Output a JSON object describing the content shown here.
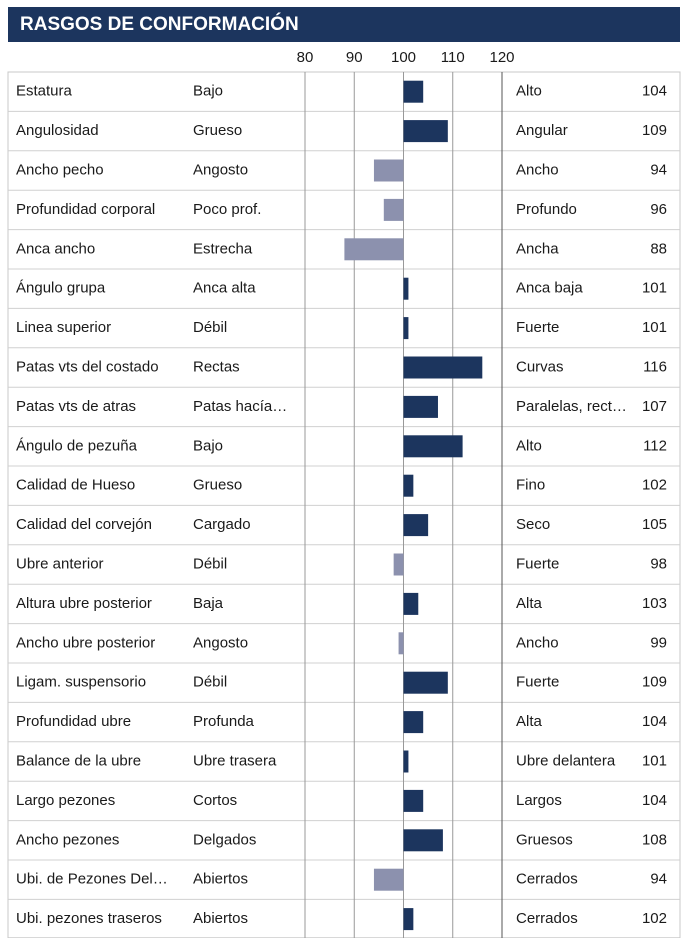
{
  "chart_data": {
    "type": "bar",
    "title": "RASGOS DE CONFORMACIÓN",
    "categories": [
      "Estatura",
      "Angulosidad",
      "Ancho pecho",
      "Profundidad corporal",
      "Anca ancho",
      "Ángulo grupa",
      "Linea superior",
      "Patas vts del costado",
      "Patas vts de atras",
      "Ángulo de pezuña",
      "Calidad de Hueso",
      "Calidad del corvejón",
      "Ubre anterior",
      "Altura ubre posterior",
      "Ancho ubre posterior",
      "Ligam. suspensorio",
      "Profundidad ubre",
      "Balance de la ubre",
      "Largo pezones",
      "Ancho pezones",
      "Ubi. de Pezones Del…",
      "Ubi. pezones traseros"
    ],
    "low_labels": [
      "Bajo",
      "Grueso",
      "Angosto",
      "Poco prof.",
      "Estrecha",
      "Anca alta",
      "Débil",
      "Rectas",
      "Patas hacía…",
      "Bajo",
      "Grueso",
      "Cargado",
      "Débil",
      "Baja",
      "Angosto",
      "Débil",
      "Profunda",
      "Ubre trasera",
      "Cortos",
      "Delgados",
      "Abiertos",
      "Abiertos"
    ],
    "high_labels": [
      "Alto",
      "Angular",
      "Ancho",
      "Profundo",
      "Ancha",
      "Anca baja",
      "Fuerte",
      "Curvas",
      "Paralelas, rect…",
      "Alto",
      "Fino",
      "Seco",
      "Fuerte",
      "Alta",
      "Ancho",
      "Fuerte",
      "Alta",
      "Ubre delantera",
      "Largos",
      "Gruesos",
      "Cerrados",
      "Cerrados"
    ],
    "values": [
      104,
      109,
      94,
      96,
      88,
      101,
      101,
      116,
      107,
      112,
      102,
      105,
      98,
      103,
      99,
      109,
      104,
      101,
      104,
      108,
      94,
      102
    ],
    "xlim": [
      80,
      120
    ],
    "xticks": [
      80,
      90,
      100,
      110,
      120
    ],
    "base": 100,
    "color": "#1c355e",
    "negative_color": "#8c91ae",
    "grid": true
  }
}
